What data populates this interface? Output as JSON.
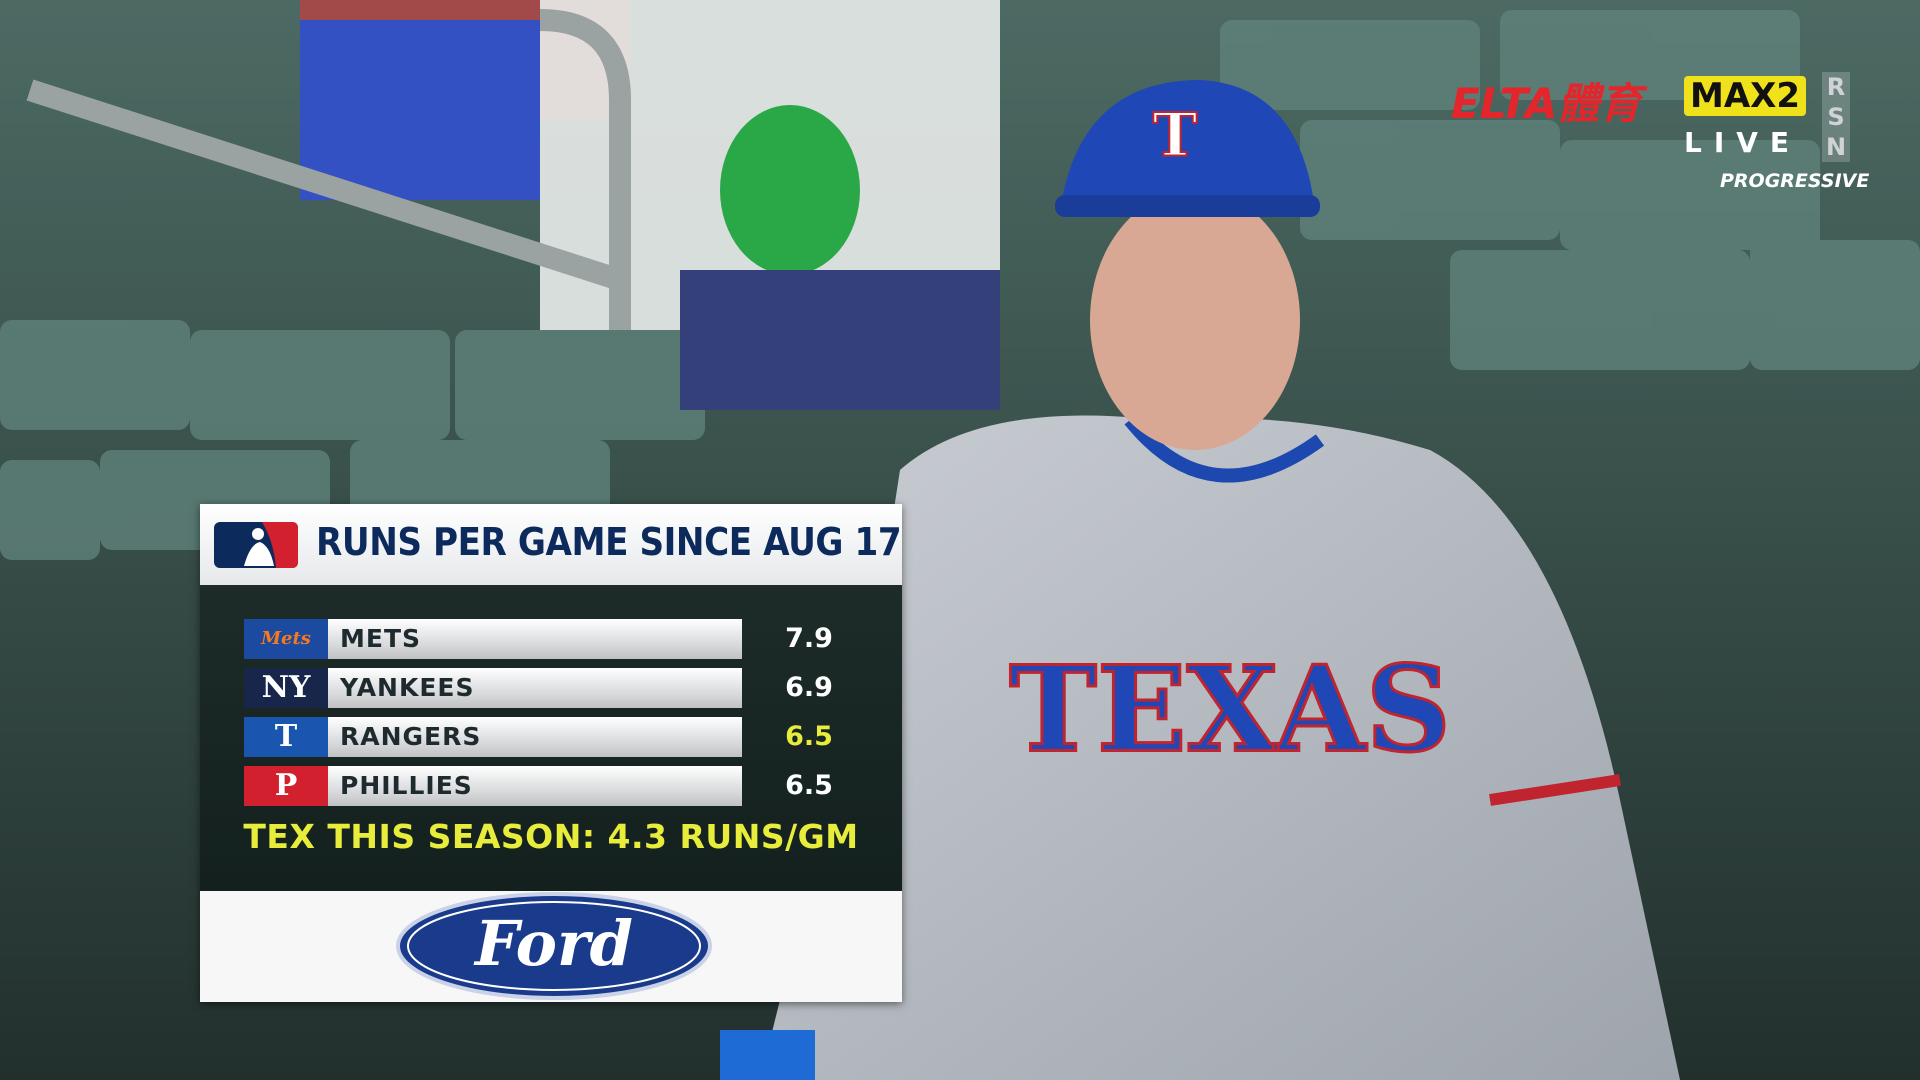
{
  "broadcast": {
    "network": "ELTA體育",
    "channel": "MAX2",
    "status": "LIVE",
    "network_side": "RSN",
    "sponsor_bug": "PROGRESSIVE"
  },
  "scene": {
    "jersey": "TEXAS"
  },
  "graphic": {
    "title": "RUNS PER GAME SINCE AUG 17",
    "rows": [
      {
        "logo": "Mets",
        "logo_color": "#1b4aa0",
        "team": "METS",
        "value": 7.9,
        "highlight": false
      },
      {
        "logo": "NY",
        "logo_color": "#17264a",
        "team": "YANKEES",
        "value": 6.9,
        "highlight": false
      },
      {
        "logo": "T",
        "logo_color": "#1a56b0",
        "team": "RANGERS",
        "value": 6.5,
        "highlight": true
      },
      {
        "logo": "P",
        "logo_color": "#d2202e",
        "team": "PHILLIES",
        "value": 6.5,
        "highlight": false
      }
    ],
    "note": "TEX THIS SEASON: 4.3 RUNS/GM",
    "sponsor": "Ford"
  }
}
